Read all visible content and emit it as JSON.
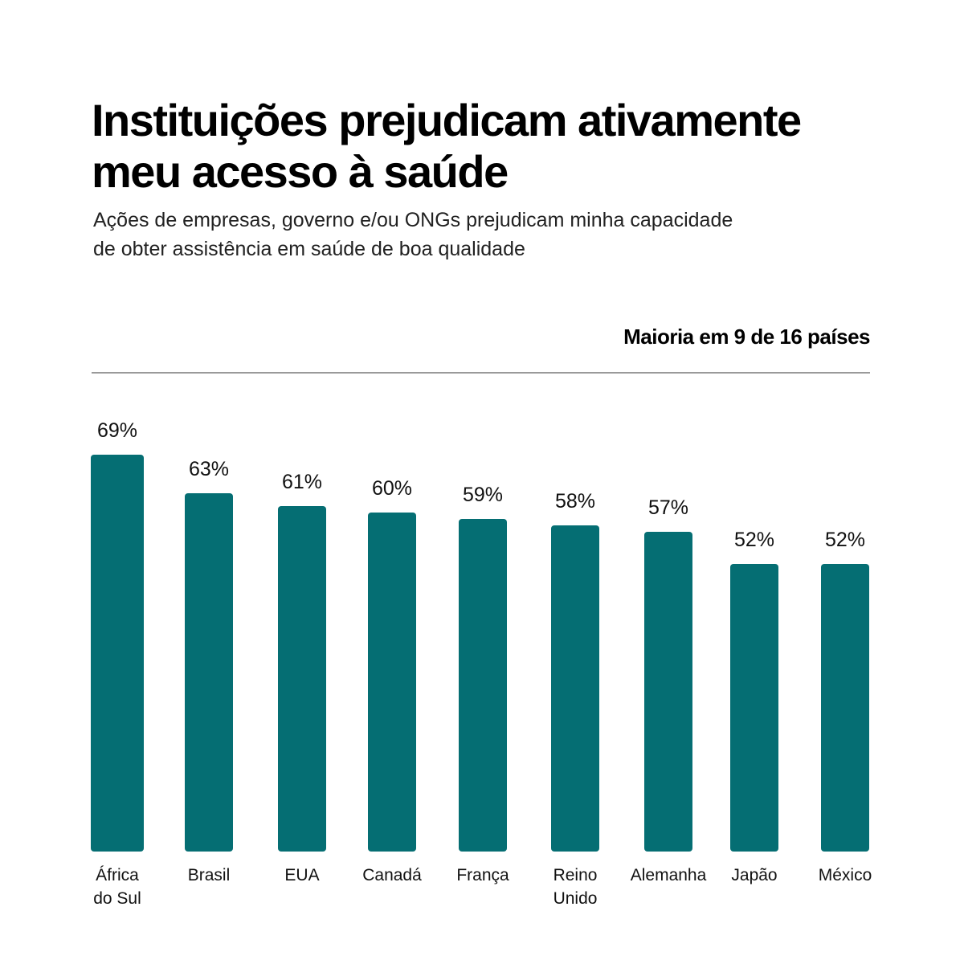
{
  "header": {
    "title_line1": "Instituições prejudicam ativamente",
    "title_line2": "meu acesso à saúde",
    "subtitle_line1": "Ações de empresas, governo e/ou ONGs prejudicam minha capacidade",
    "subtitle_line2": "de obter assistência em saúde de boa qualidade",
    "note": "Maioria em 9 de 16 países"
  },
  "chart_data": {
    "type": "bar",
    "title": "Instituições prejudicam ativamente meu acesso à saúde",
    "subtitle": "Ações de empresas, governo e/ou ONGs prejudicam minha capacidade de obter assistência em saúde de boa qualidade",
    "annotation": "Maioria em 9 de 16 países",
    "categories": [
      [
        "África",
        "do Sul"
      ],
      [
        "Brasil"
      ],
      [
        "EUA"
      ],
      [
        "Canadá"
      ],
      [
        "França"
      ],
      [
        "Reino",
        "Unido"
      ],
      [
        "Alemanha"
      ],
      [
        "Japão"
      ],
      [
        "México"
      ]
    ],
    "values": [
      69,
      63,
      61,
      60,
      59,
      58,
      57,
      52,
      52
    ],
    "value_labels": [
      "69%",
      "63%",
      "61%",
      "60%",
      "59%",
      "58%",
      "57%",
      "52%",
      "52%"
    ],
    "unit": "%",
    "bar_color": "#056e73",
    "xlabel": "",
    "ylabel": "",
    "grid": false,
    "legend": "none"
  }
}
